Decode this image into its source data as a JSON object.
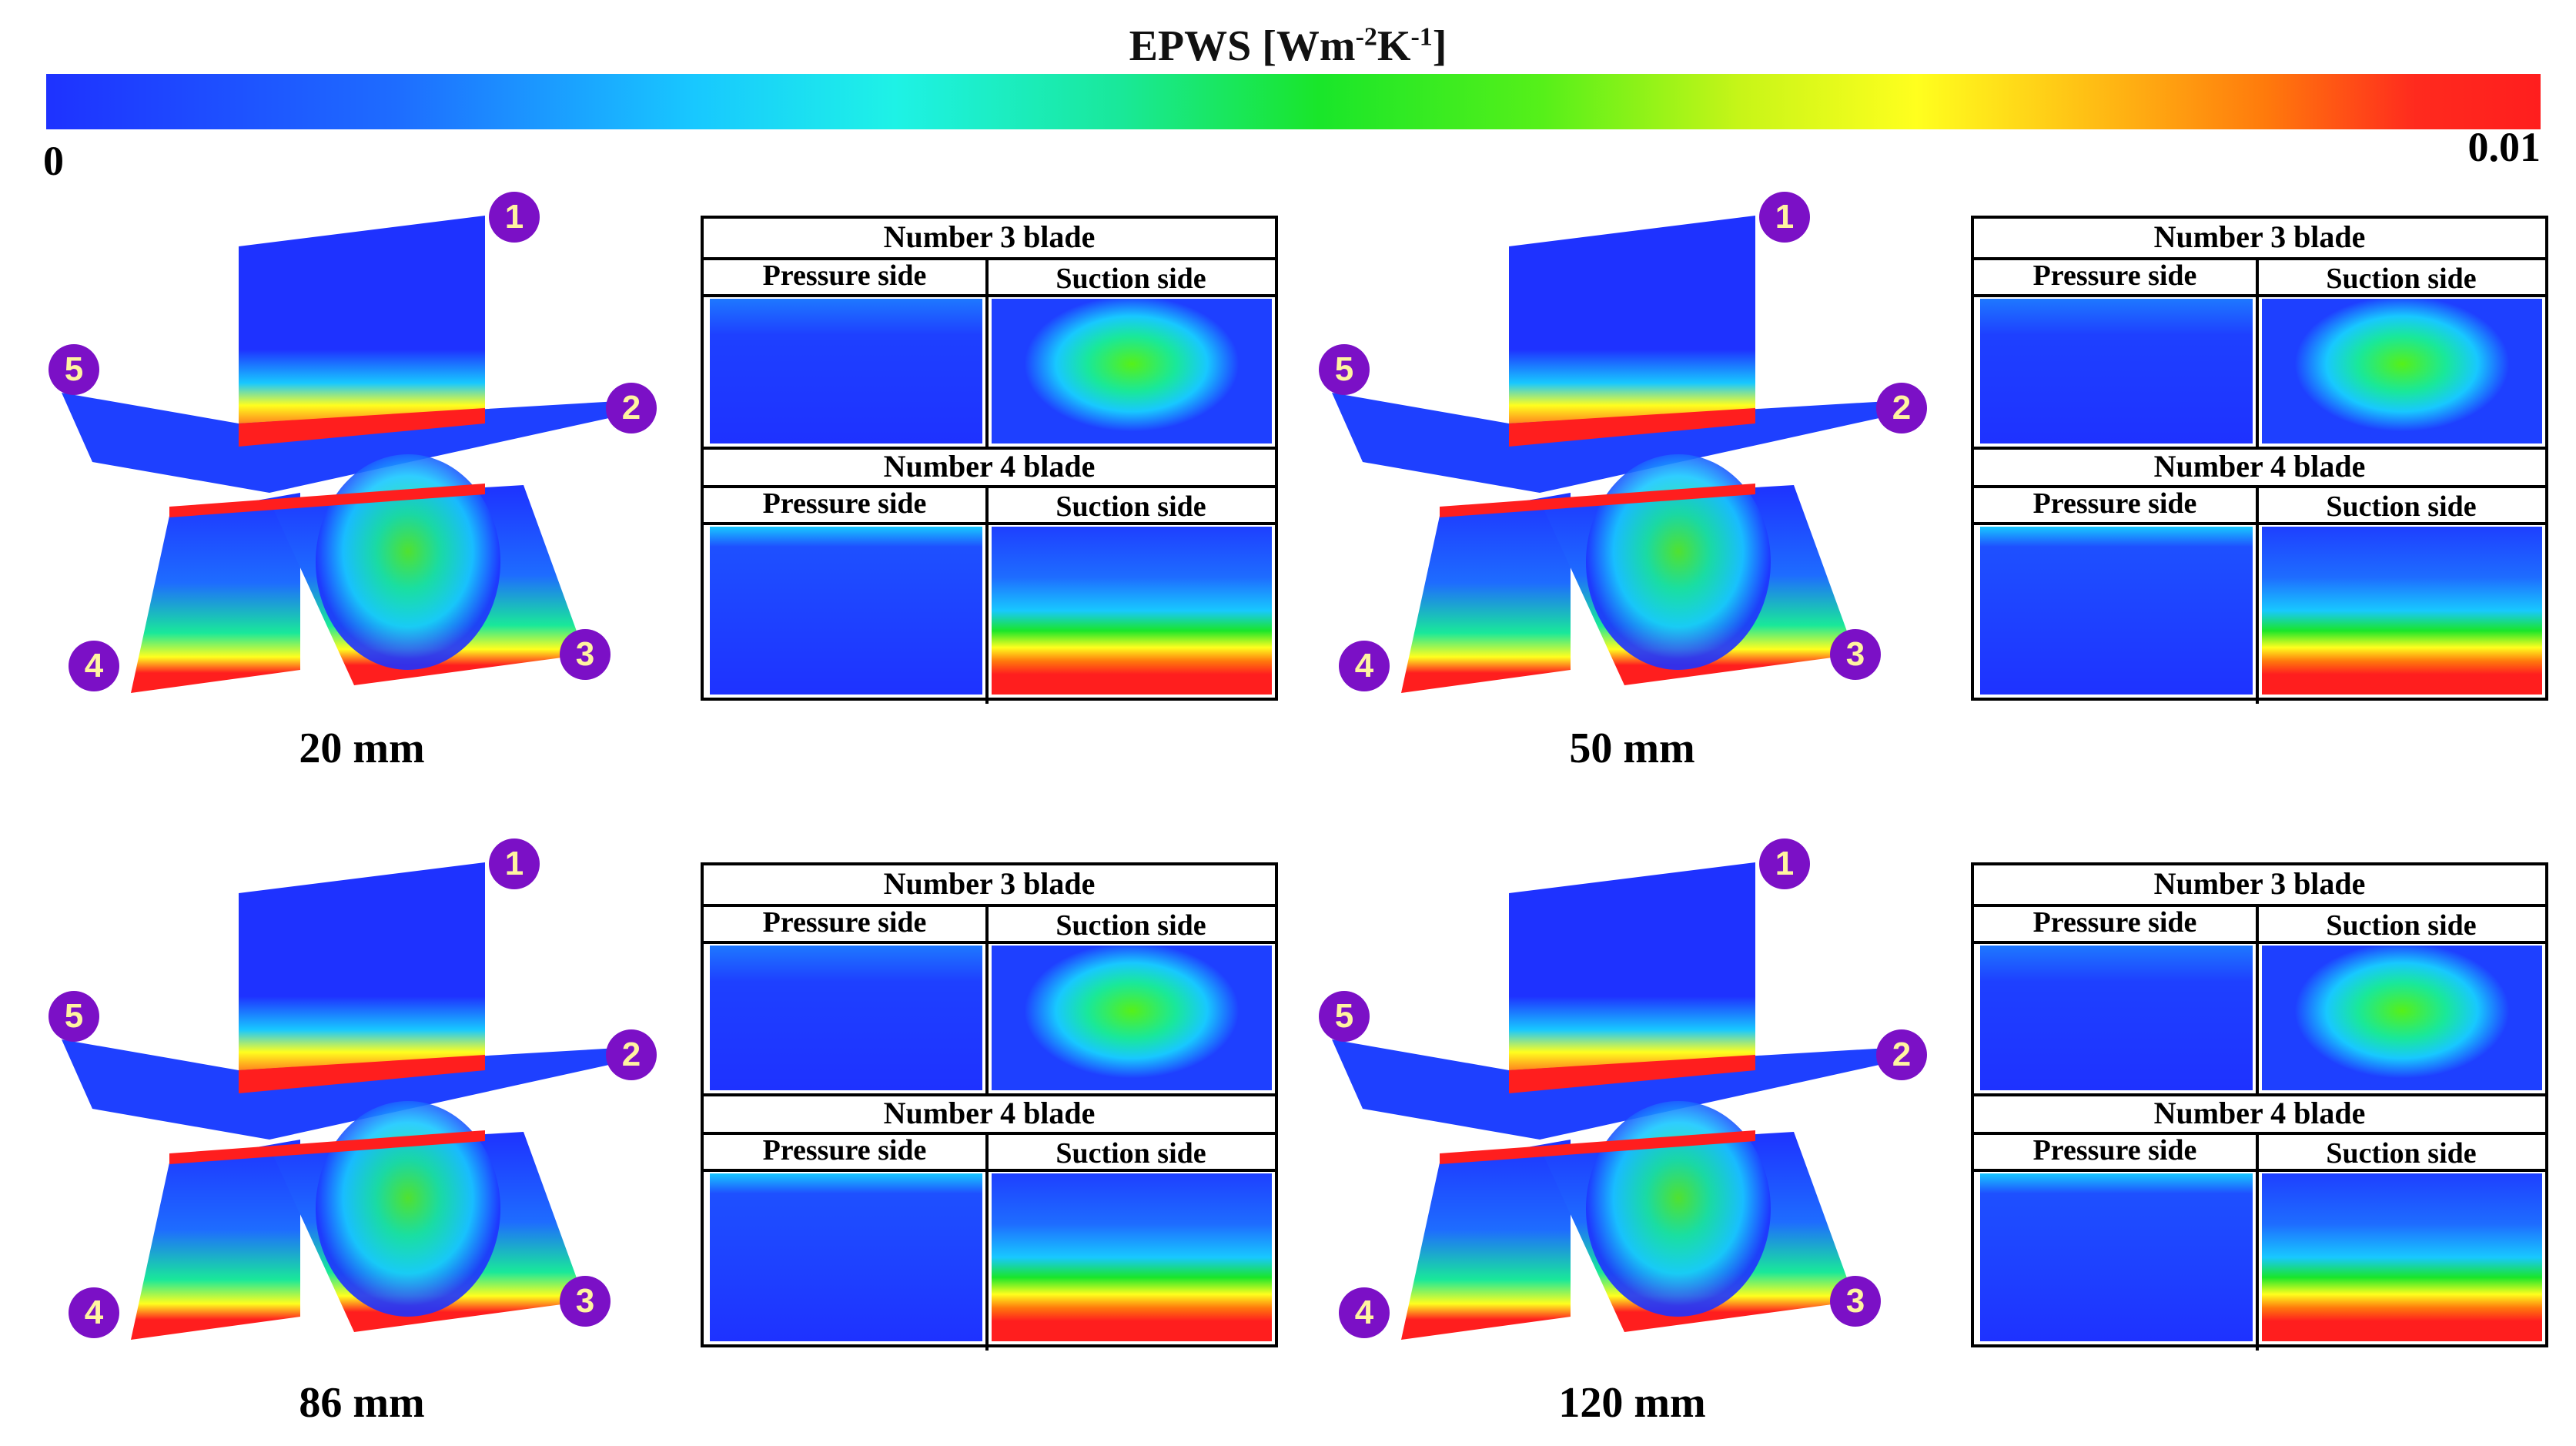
{
  "colorbar": {
    "title_main": "EPWS [Wm",
    "title_sup1": "-2",
    "title_mid": "K",
    "title_sup2": "-1",
    "title_end": "]",
    "min_label": "0",
    "max_label": "0.01",
    "colormap": "rainbow (blue-cyan-green-yellow-red)"
  },
  "cases": [
    {
      "caption": "20 mm",
      "markers": [
        "1",
        "2",
        "3",
        "4",
        "5"
      ],
      "panel": {
        "blade3_title": "Number 3 blade",
        "blade4_title": "Number 4 blade",
        "pressure_label": "Pressure side",
        "suction_label": "Suction side"
      }
    },
    {
      "caption": "50 mm",
      "markers": [
        "1",
        "2",
        "3",
        "4",
        "5"
      ],
      "panel": {
        "blade3_title": "Number 3 blade",
        "blade4_title": "Number 4 blade",
        "pressure_label": "Pressure side",
        "suction_label": "Suction side"
      }
    },
    {
      "caption": "86 mm",
      "markers": [
        "1",
        "2",
        "3",
        "4",
        "5"
      ],
      "panel": {
        "blade3_title": "Number 3 blade",
        "blade4_title": "Number 4 blade",
        "pressure_label": "Pressure side",
        "suction_label": "Suction side"
      }
    },
    {
      "caption": "120 mm",
      "markers": [
        "1",
        "2",
        "3",
        "4",
        "5"
      ],
      "panel": {
        "blade3_title": "Number 3 blade",
        "blade4_title": "Number 4 blade",
        "pressure_label": "Pressure side",
        "suction_label": "Suction side"
      }
    }
  ],
  "colors": {
    "low": "#1e32ff",
    "mid": "#19e62a",
    "high": "#ff1e1e",
    "badge": "#7b10c6",
    "badge_text": "#fff4a0"
  }
}
